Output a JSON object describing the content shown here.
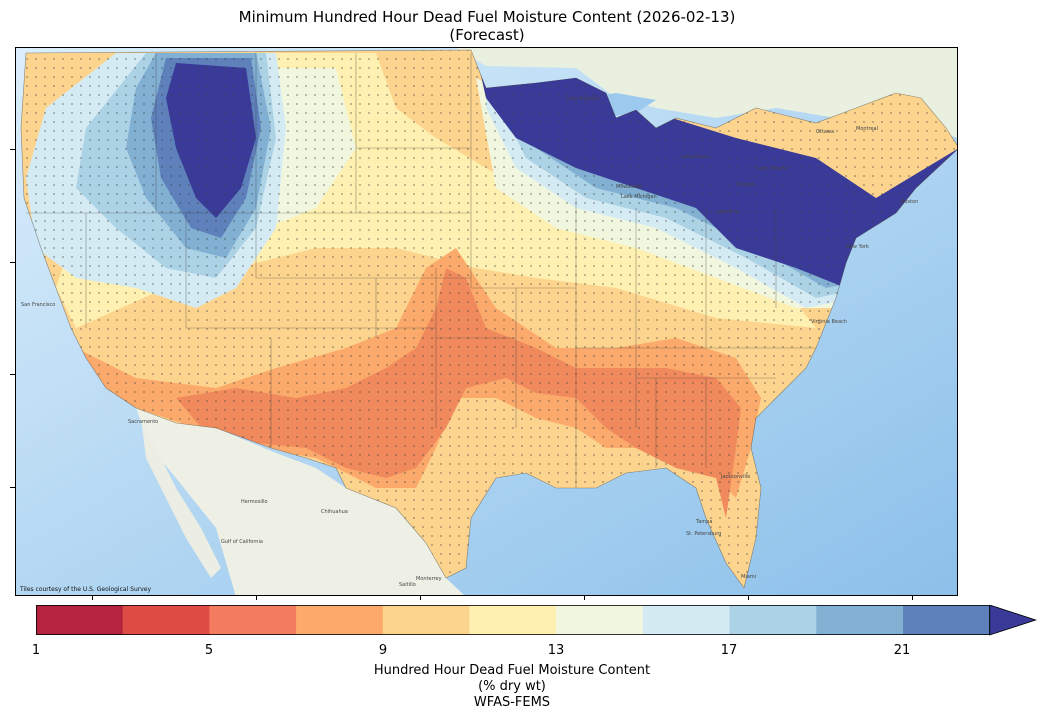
{
  "map": {
    "title_line1": "Minimum Hundred Hour Dead Fuel Moisture Content (2026-02-13)",
    "title_line2": "(Forecast)",
    "attribution": "Tiles courtesy of the U.S. Geological Survey",
    "basemap_labels": [
      "Lake Superior",
      "Lake Michigan",
      "Lake Huron",
      "Lake Erie",
      "Lake Ontario",
      "Milwaukee",
      "Ottawa",
      "Montreal",
      "Toronto",
      "Boston",
      "New York",
      "Virginia Beach",
      "Jacksonville",
      "Tampa",
      "St. Petersburg",
      "Miami",
      "Hermosillo",
      "Chihuahua",
      "Monterrey",
      "Saltillo",
      "San Francisco",
      "Gulf of California",
      "Sacramento"
    ],
    "region": "Contiguous United States",
    "pattern": {
      "dry_core": "Southwest deserts, southern Plains and Southeast (about 7-9 %)",
      "moderate": "Central Plains, Great Basin and Mid-South (about 9-13 %)",
      "wet": "Northern Rockies, Upper Midwest, Great Lakes and Northeast (above 21 %)"
    },
    "colors": {
      "wet_band": "#3a3a99",
      "dry_band": "#f08a5d",
      "water": "#cfe5f7",
      "land_outside": "#eef1e6"
    }
  },
  "colorbar": {
    "ticks": [
      "1",
      "5",
      "9",
      "13",
      "17",
      "21"
    ],
    "label_line1": "Hundred Hour Dead Fuel Moisture Content",
    "label_line2": "(% dry wt)",
    "label_line3": "WFAS-FEMS",
    "bins": [
      {
        "range": "1-3",
        "color": "#b5243f"
      },
      {
        "range": "3-5",
        "color": "#de4c45"
      },
      {
        "range": "5-7",
        "color": "#f47c5e"
      },
      {
        "range": "7-9",
        "color": "#fbaa6b"
      },
      {
        "range": "9-11",
        "color": "#fdd48e"
      },
      {
        "range": "11-13",
        "color": "#fef0b0"
      },
      {
        "range": "13-15",
        "color": "#f1f7df"
      },
      {
        "range": "15-17",
        "color": "#d5ebf3"
      },
      {
        "range": "17-19",
        "color": "#acd2e6"
      },
      {
        "range": "19-21",
        "color": "#82b0d3"
      },
      {
        "range": "21-23",
        "color": "#5e80bb"
      },
      {
        "range": ">23",
        "color": "#3a3a99"
      }
    ]
  }
}
